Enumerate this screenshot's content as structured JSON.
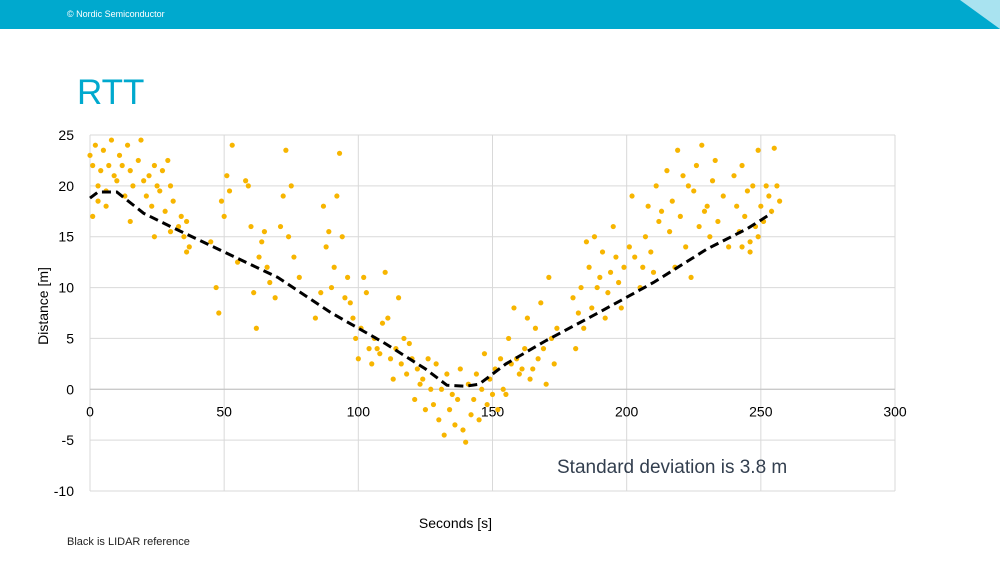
{
  "header": {
    "copyright": "© Nordic Semiconductor",
    "bar_color": "#00a9ce"
  },
  "slide": {
    "title": "RTT",
    "footnote": "Black is LIDAR reference"
  },
  "chart_data": {
    "type": "scatter",
    "xlabel": "Seconds [s]",
    "ylabel": "Distance [m]",
    "xlim": [
      0,
      300
    ],
    "ylim": [
      -10,
      25
    ],
    "xticks": [
      0,
      50,
      100,
      150,
      200,
      250,
      300
    ],
    "yticks": [
      -10,
      -5,
      0,
      5,
      10,
      15,
      20,
      25
    ],
    "grid": true,
    "annotation": "Standard deviation is 3.8 m",
    "series": [
      {
        "name": "",
        "kind": "scatter",
        "color": "#f7b500",
        "points": [
          [
            0,
            23
          ],
          [
            1,
            22
          ],
          [
            2,
            24
          ],
          [
            3,
            20
          ],
          [
            4,
            21.5
          ],
          [
            5,
            23.5
          ],
          [
            6,
            19.5
          ],
          [
            7,
            22
          ],
          [
            8,
            24.5
          ],
          [
            9,
            21
          ],
          [
            10,
            20.5
          ],
          [
            11,
            23
          ],
          [
            12,
            22
          ],
          [
            13,
            19
          ],
          [
            14,
            24
          ],
          [
            15,
            21.5
          ],
          [
            16,
            20
          ],
          [
            18,
            22.5
          ],
          [
            19,
            24.5
          ],
          [
            20,
            20.5
          ],
          [
            21,
            19
          ],
          [
            22,
            21
          ],
          [
            23,
            18
          ],
          [
            24,
            22
          ],
          [
            25,
            20
          ],
          [
            26,
            19.5
          ],
          [
            27,
            21.5
          ],
          [
            28,
            17.5
          ],
          [
            29,
            22.5
          ],
          [
            30,
            20
          ],
          [
            31,
            18.5
          ],
          [
            33,
            16
          ],
          [
            34,
            17
          ],
          [
            35,
            15
          ],
          [
            36,
            16.5
          ],
          [
            37,
            14
          ],
          [
            1,
            17
          ],
          [
            3,
            18.5
          ],
          [
            6,
            18
          ],
          [
            15,
            16.5
          ],
          [
            24,
            15
          ],
          [
            30,
            15.5
          ],
          [
            36,
            13.5
          ],
          [
            45,
            14.5
          ],
          [
            47,
            10
          ],
          [
            48,
            7.5
          ],
          [
            49,
            18.5
          ],
          [
            50,
            17
          ],
          [
            51,
            21
          ],
          [
            52,
            19.5
          ],
          [
            53,
            24
          ],
          [
            55,
            12.5
          ],
          [
            58,
            20.5
          ],
          [
            59,
            20
          ],
          [
            60,
            16
          ],
          [
            61,
            9.5
          ],
          [
            62,
            6
          ],
          [
            63,
            13
          ],
          [
            64,
            14.5
          ],
          [
            65,
            15.5
          ],
          [
            66,
            12
          ],
          [
            67,
            10.5
          ],
          [
            69,
            9
          ],
          [
            71,
            16
          ],
          [
            72,
            19
          ],
          [
            73,
            23.5
          ],
          [
            74,
            15
          ],
          [
            75,
            20
          ],
          [
            76,
            13
          ],
          [
            78,
            11
          ],
          [
            84,
            7
          ],
          [
            86,
            9.5
          ],
          [
            87,
            18
          ],
          [
            88,
            14
          ],
          [
            89,
            15.5
          ],
          [
            90,
            10
          ],
          [
            91,
            12
          ],
          [
            92,
            19
          ],
          [
            93,
            23.2
          ],
          [
            94,
            15
          ],
          [
            95,
            9
          ],
          [
            96,
            11
          ],
          [
            97,
            8.5
          ],
          [
            98,
            7
          ],
          [
            99,
            5
          ],
          [
            100,
            3
          ],
          [
            101,
            6
          ],
          [
            102,
            11
          ],
          [
            103,
            9.5
          ],
          [
            104,
            4
          ],
          [
            105,
            2.5
          ],
          [
            106,
            5
          ],
          [
            107,
            4
          ],
          [
            108,
            3.5
          ],
          [
            109,
            6.5
          ],
          [
            110,
            11.5
          ],
          [
            111,
            7
          ],
          [
            112,
            3
          ],
          [
            113,
            1
          ],
          [
            114,
            4
          ],
          [
            115,
            9
          ],
          [
            116,
            2.5
          ],
          [
            117,
            5
          ],
          [
            118,
            1.5
          ],
          [
            119,
            4.5
          ],
          [
            120,
            3
          ],
          [
            121,
            -1
          ],
          [
            122,
            2
          ],
          [
            123,
            0.5
          ],
          [
            124,
            1
          ],
          [
            125,
            -2
          ],
          [
            126,
            3
          ],
          [
            127,
            0
          ],
          [
            128,
            -1.5
          ],
          [
            129,
            2.5
          ],
          [
            130,
            -3
          ],
          [
            131,
            0
          ],
          [
            132,
            -4.5
          ],
          [
            133,
            1.5
          ],
          [
            134,
            -2
          ],
          [
            135,
            -0.5
          ],
          [
            136,
            -3.5
          ],
          [
            137,
            -1
          ],
          [
            138,
            2
          ],
          [
            139,
            -4
          ],
          [
            140,
            -5.2
          ],
          [
            141,
            0.5
          ],
          [
            142,
            -2.5
          ],
          [
            143,
            -1
          ],
          [
            144,
            1.5
          ],
          [
            145,
            -3
          ],
          [
            146,
            0
          ],
          [
            147,
            3.5
          ],
          [
            148,
            -1.5
          ],
          [
            149,
            1
          ],
          [
            150,
            -0.5
          ],
          [
            151,
            2
          ],
          [
            152,
            -2
          ],
          [
            153,
            3
          ],
          [
            154,
            0
          ],
          [
            155,
            -0.5
          ],
          [
            156,
            5
          ],
          [
            157,
            2.5
          ],
          [
            158,
            8
          ],
          [
            159,
            3
          ],
          [
            160,
            1.5
          ],
          [
            161,
            2
          ],
          [
            162,
            4
          ],
          [
            163,
            7
          ],
          [
            164,
            1
          ],
          [
            165,
            2
          ],
          [
            166,
            6
          ],
          [
            167,
            3
          ],
          [
            168,
            8.5
          ],
          [
            169,
            4
          ],
          [
            170,
            0.5
          ],
          [
            171,
            11
          ],
          [
            172,
            5
          ],
          [
            173,
            2.5
          ],
          [
            174,
            6
          ],
          [
            180,
            9
          ],
          [
            181,
            4
          ],
          [
            182,
            7.5
          ],
          [
            183,
            10
          ],
          [
            184,
            6
          ],
          [
            185,
            14.5
          ],
          [
            186,
            12
          ],
          [
            187,
            8
          ],
          [
            188,
            15
          ],
          [
            189,
            10
          ],
          [
            190,
            11
          ],
          [
            191,
            13.5
          ],
          [
            192,
            7
          ],
          [
            193,
            9.5
          ],
          [
            194,
            11.5
          ],
          [
            195,
            16
          ],
          [
            196,
            13
          ],
          [
            197,
            10.5
          ],
          [
            198,
            8
          ],
          [
            199,
            12
          ],
          [
            201,
            14
          ],
          [
            202,
            19
          ],
          [
            203,
            13
          ],
          [
            205,
            10
          ],
          [
            206,
            12
          ],
          [
            207,
            15
          ],
          [
            208,
            18
          ],
          [
            209,
            13.5
          ],
          [
            210,
            11.5
          ],
          [
            211,
            20
          ],
          [
            212,
            16.5
          ],
          [
            213,
            17.5
          ],
          [
            215,
            21.5
          ],
          [
            216,
            15.5
          ],
          [
            217,
            18.5
          ],
          [
            218,
            12
          ],
          [
            219,
            23.5
          ],
          [
            220,
            17
          ],
          [
            221,
            21
          ],
          [
            222,
            14
          ],
          [
            223,
            20
          ],
          [
            224,
            11
          ],
          [
            225,
            19.5
          ],
          [
            226,
            22
          ],
          [
            227,
            16
          ],
          [
            228,
            24
          ],
          [
            229,
            17.5
          ],
          [
            230,
            18
          ],
          [
            231,
            15
          ],
          [
            232,
            20.5
          ],
          [
            233,
            22.5
          ],
          [
            234,
            16.5
          ],
          [
            236,
            19
          ],
          [
            238,
            14
          ],
          [
            240,
            21
          ],
          [
            241,
            18
          ],
          [
            242,
            15.5
          ],
          [
            243,
            22
          ],
          [
            244,
            17
          ],
          [
            245,
            19.5
          ],
          [
            246,
            14.5
          ],
          [
            247,
            20
          ],
          [
            248,
            16
          ],
          [
            249,
            23.5
          ],
          [
            250,
            18
          ],
          [
            251,
            16.5
          ],
          [
            252,
            20
          ],
          [
            253,
            19
          ],
          [
            254,
            17.5
          ],
          [
            255,
            23.7
          ],
          [
            256,
            20
          ],
          [
            257,
            18.5
          ],
          [
            246,
            13.5
          ],
          [
            249,
            15
          ],
          [
            243,
            14
          ]
        ]
      },
      {
        "name": "",
        "kind": "line",
        "color": "#000000",
        "dashed": true,
        "points": [
          [
            0,
            18.8
          ],
          [
            3,
            19.4
          ],
          [
            10,
            19.4
          ],
          [
            20,
            17.3
          ],
          [
            30,
            16
          ],
          [
            50,
            13.5
          ],
          [
            70,
            11
          ],
          [
            90,
            7.5
          ],
          [
            110,
            4.5
          ],
          [
            125,
            2
          ],
          [
            133,
            0.4
          ],
          [
            140,
            0.3
          ],
          [
            145,
            0.5
          ],
          [
            155,
            2.5
          ],
          [
            170,
            4.8
          ],
          [
            190,
            7.6
          ],
          [
            210,
            10.5
          ],
          [
            230,
            13.8
          ],
          [
            245,
            15.8
          ],
          [
            254,
            17.3
          ]
        ]
      }
    ]
  }
}
